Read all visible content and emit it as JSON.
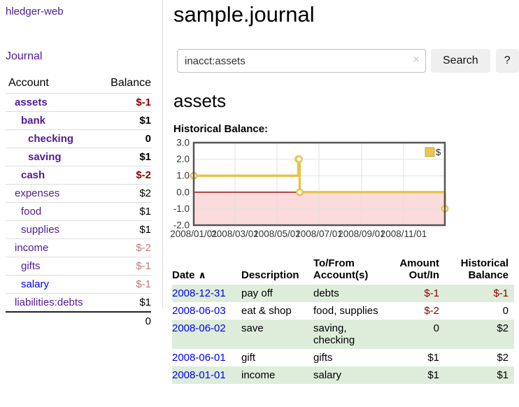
{
  "app": {
    "title": "hledger-web",
    "nav_journal_label": "Journal"
  },
  "colors": {
    "link_purple": "#531B93",
    "link_blue": "#0000EE",
    "negative_strong": "#8B0000",
    "negative_soft": "#C17878",
    "row_stripe_green": "#DEEDDA",
    "chart_line_gold": "#E8C44E",
    "chart_negative_fill": "#FBDBDB",
    "chart_zero_line": "#8B0000",
    "button_gray": "#EFEFEF"
  },
  "sidebar": {
    "header": {
      "account": "Account",
      "balance": "Balance"
    },
    "accounts": [
      {
        "name": "assets",
        "balance": "$-1",
        "indent": 1,
        "in_query": true,
        "balance_tone": "negative-strong"
      },
      {
        "name": "bank",
        "balance": "$1",
        "indent": 2,
        "in_query": true,
        "balance_tone": "normal"
      },
      {
        "name": "checking",
        "balance": "0",
        "indent": 3,
        "in_query": true,
        "balance_tone": "normal"
      },
      {
        "name": "saving",
        "balance": "$1",
        "indent": 3,
        "in_query": true,
        "balance_tone": "normal"
      },
      {
        "name": "cash",
        "balance": "$-2",
        "indent": 2,
        "in_query": true,
        "balance_tone": "negative-strong"
      },
      {
        "name": "expenses",
        "balance": "$2",
        "indent": 1,
        "in_query": false,
        "balance_tone": "normal"
      },
      {
        "name": "food",
        "balance": "$1",
        "indent": 2,
        "in_query": false,
        "balance_tone": "normal"
      },
      {
        "name": "supplies",
        "balance": "$1",
        "indent": 2,
        "in_query": false,
        "balance_tone": "normal"
      },
      {
        "name": "income",
        "balance": "$-2",
        "indent": 1,
        "in_query": false,
        "balance_tone": "negative-soft"
      },
      {
        "name": "gifts",
        "balance": "$-1",
        "indent": 2,
        "in_query": false,
        "balance_tone": "negative-soft"
      },
      {
        "name": "salary",
        "balance": "$-1",
        "indent": 2,
        "in_query": false,
        "balance_tone": "negative-soft",
        "link_color": "blue"
      },
      {
        "name": "liabilities:debts",
        "balance": "$1",
        "indent": 1,
        "in_query": false,
        "balance_tone": "normal"
      }
    ],
    "total": "0"
  },
  "main": {
    "title": "sample.journal",
    "search": {
      "value": "inacct:assets",
      "clear_icon": "×",
      "search_label": "Search",
      "help_label": "?"
    },
    "account_heading": "assets",
    "chart_label": "Historical Balance:"
  },
  "chart_data": {
    "type": "line",
    "title": "Historical Balance:",
    "step": true,
    "series": [
      {
        "name": "$",
        "points": [
          [
            "2008-01-01",
            1
          ],
          [
            "2008-06-01",
            2
          ],
          [
            "2008-06-02",
            2
          ],
          [
            "2008-06-03",
            0
          ],
          [
            "2008-12-31",
            -1
          ]
        ]
      }
    ],
    "xlim": [
      "2008-01-01",
      "2008-12-31"
    ],
    "ylim": [
      -2,
      3
    ],
    "y_ticks": [
      "3.0",
      "2.0",
      "1.0",
      "0.0",
      "-1.0",
      "-2.0"
    ],
    "y_tick_values": [
      3,
      2,
      1,
      0,
      -1,
      -2
    ],
    "x_ticks": [
      "2008/01/01",
      "2008/03/01",
      "2008/05/01",
      "2008/07/01",
      "2008/09/01",
      "2008/11/01"
    ],
    "grid": true,
    "legend_position": "top-right",
    "legend_label": "$"
  },
  "table": {
    "headers": [
      "Date",
      "Description",
      "To/From Account(s)",
      "Amount Out/In",
      "Historical Balance"
    ],
    "sort_indicator": "∧",
    "rows": [
      {
        "date": "2008-12-31",
        "description": "pay off",
        "accounts": "debts",
        "amount": "$-1",
        "amount_negative": true,
        "balance": "$-1",
        "balance_negative": true
      },
      {
        "date": "2008-06-03",
        "description": "eat & shop",
        "accounts": "food, supplies",
        "amount": "$-2",
        "amount_negative": true,
        "balance": "0",
        "balance_negative": false
      },
      {
        "date": "2008-06-02",
        "description": "save",
        "accounts": "saving, checking",
        "amount": "0",
        "amount_negative": false,
        "balance": "$2",
        "balance_negative": false
      },
      {
        "date": "2008-06-01",
        "description": "gift",
        "accounts": "gifts",
        "amount": "$1",
        "amount_negative": false,
        "balance": "$2",
        "balance_negative": false
      },
      {
        "date": "2008-01-01",
        "description": "income",
        "accounts": "salary",
        "amount": "$1",
        "amount_negative": false,
        "balance": "$1",
        "balance_negative": false
      }
    ]
  }
}
